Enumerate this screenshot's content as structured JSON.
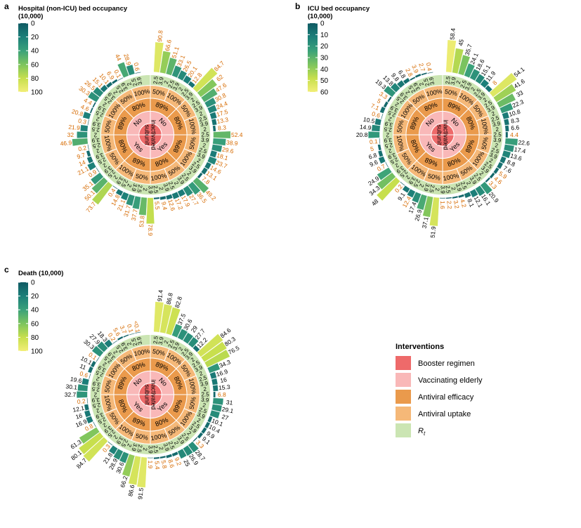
{
  "colors": {
    "booster": "#ee6a6a",
    "elderly": "#f9b8b8",
    "efficacy": "#ea9a4c",
    "uptake": "#f5b878",
    "rt": "#cbe5b3",
    "value_black": "#000000",
    "value_orange": "#d66a00",
    "scale": [
      "#0f5a63",
      "#1c7f79",
      "#3aa17a",
      "#7cc45e",
      "#c7df4d",
      "#f2ee78"
    ]
  },
  "legend": {
    "title": "Interventions",
    "items": [
      {
        "label": "Booster regimen",
        "color_key": "booster"
      },
      {
        "label": "Vaccinating elderly",
        "color_key": "elderly"
      },
      {
        "label": "Antiviral efficacy",
        "color_key": "efficacy"
      },
      {
        "label": "Antiviral uptake",
        "color_key": "uptake"
      },
      {
        "label": "R",
        "sub": "t",
        "color_key": "rt"
      }
    ]
  },
  "rings": {
    "booster": [
      "subunit",
      "inactivated"
    ],
    "elderly": [
      "No",
      "Yes",
      "Yes",
      "No"
    ],
    "efficacy": [
      "89%",
      "80%",
      "89%",
      "80%",
      "89%",
      "80%",
      "89%",
      "80%"
    ],
    "uptake": [
      "50%",
      "100%",
      "50%",
      "100%",
      "50%",
      "100%",
      "50%",
      "100%",
      "50%",
      "100%",
      "50%",
      "100%",
      "50%",
      "100%",
      "50%",
      "100%"
    ],
    "rt": [
      "2.5",
      "3.9",
      "2"
    ]
  },
  "chart_data": [
    {
      "panel": "a",
      "type": "radial_bar",
      "scale_title": "Hospital (non-ICU) bed occupancy (10,000)",
      "scale_ticks": [
        "0",
        "20",
        "40",
        "60",
        "80",
        "100"
      ],
      "scale_max": 100,
      "values": [
        "90.8",
        "66.6",
        "51.1",
        "33.1",
        "26.5",
        "20.1",
        "12.8",
        "84.7",
        "62",
        "47.6",
        "30.8",
        "24.4",
        "17.5",
        "13.3",
        "8.3",
        "52.4",
        "38.9",
        "29.6",
        "18.1",
        "23.7",
        "14.6",
        "13.1",
        "7.8",
        "49.2",
        "36.5",
        "27.7",
        "17.9",
        "17.2",
        "12.6",
        "9.4",
        "5.5",
        "78.9",
        "53.8",
        "37.7",
        "31.7",
        "21.1",
        "14.8",
        "0.4",
        "73.7",
        "50.1",
        "35.1",
        "0.9",
        "21.1",
        "14",
        "9.7",
        "0.2",
        "46.9",
        "32",
        "21.9",
        "0.3",
        "20.8",
        "4.6",
        "4.4",
        "30.3",
        "26.5",
        "15.1",
        "10.1",
        "6.9",
        "0.1",
        "44",
        "28.9",
        "0.6"
      ],
      "orange_indices": [
        0,
        1,
        2,
        3,
        4,
        5,
        6,
        7,
        8,
        9,
        10,
        11,
        12,
        13,
        14,
        15,
        16,
        17,
        18,
        19,
        20,
        21,
        22,
        23,
        24,
        25,
        26,
        27,
        28,
        29,
        30,
        31,
        32,
        33,
        34,
        35,
        36,
        37,
        38,
        39,
        40,
        41,
        42,
        43,
        44,
        45,
        46,
        47,
        48,
        49,
        50,
        51,
        52,
        53,
        54,
        55,
        56,
        57,
        58,
        59,
        60,
        61
      ]
    },
    {
      "panel": "b",
      "type": "radial_bar",
      "scale_title": "ICU bed occupancy (10,000)",
      "scale_ticks": [
        "0",
        "10",
        "20",
        "30",
        "40",
        "50",
        "60"
      ],
      "scale_max": 60,
      "values": [
        "58.4",
        "45",
        "35.7",
        "24.1",
        "18.6",
        "15.1",
        "11.9",
        "8",
        "54.1",
        "41.6",
        "33",
        "22.3",
        "10.8",
        "8.3",
        "6.6",
        "4.4",
        "22.6",
        "17.4",
        "13.6",
        "8.8",
        "7.6",
        "5.9",
        "4.6",
        "3.3",
        "20.9",
        "16.1",
        "12.1",
        "8.1",
        "4.2",
        "3.2",
        "2.2",
        "1.6",
        "51.9",
        "37.1",
        "26.9",
        "17.4",
        "12.4",
        "9.1",
        "0.2",
        "48",
        "34.3",
        "24.9",
        "0.7",
        "9.6",
        "6.8",
        "5",
        "0.1",
        "20.8",
        "14.9",
        "10.5",
        "0.6",
        "7.1",
        "5",
        "3.3",
        "19.3",
        "13.8",
        "9.8",
        "6.8",
        "2.8",
        "3.9",
        "2.7",
        "0.4"
      ],
      "orange_indices": [
        7,
        15,
        21,
        22,
        23,
        28,
        29,
        30,
        31,
        36,
        38,
        42,
        45,
        46,
        50,
        51,
        52,
        53,
        58,
        59,
        60,
        61
      ]
    },
    {
      "panel": "c",
      "type": "radial_bar",
      "scale_title": "Death (10,000)",
      "scale_ticks": [
        "0",
        "20",
        "40",
        "60",
        "80",
        "100"
      ],
      "scale_max": 100,
      "values": [
        "91.4",
        "86.8",
        "82.8",
        "37.5",
        "30.6",
        "29",
        "27.7",
        "12.2",
        "84.6",
        "80.3",
        "76.5",
        "34.3",
        "16.9",
        "16",
        "15.3",
        "6.8",
        "31",
        "29.1",
        "27",
        "10.1",
        "10.4",
        "9.9",
        "9.1",
        "3.3",
        "28.7",
        "26.9",
        "25",
        "9.2",
        "8.6",
        "5.8",
        "5.4",
        "1.9",
        "91.5",
        "86.6",
        "66.2",
        "30.6",
        "28.9",
        "21.8",
        "0.3",
        "84.7",
        "80.1",
        "61.3",
        "0.8",
        "16.9",
        "16",
        "12.1",
        "0.2",
        "32.7",
        "30.1",
        "19.6",
        "0.6",
        "11",
        "10.1",
        "0.1",
        "30.3",
        "27.9",
        "18.3",
        "0.2",
        "5.6",
        "3.7",
        "0.1",
        "<0.1"
      ],
      "orange_indices": [
        15,
        23,
        27,
        28,
        29,
        30,
        31,
        38,
        42,
        46,
        50,
        53,
        57,
        58,
        59,
        60,
        61
      ]
    }
  ],
  "panel_labels": [
    "a",
    "b",
    "c"
  ]
}
